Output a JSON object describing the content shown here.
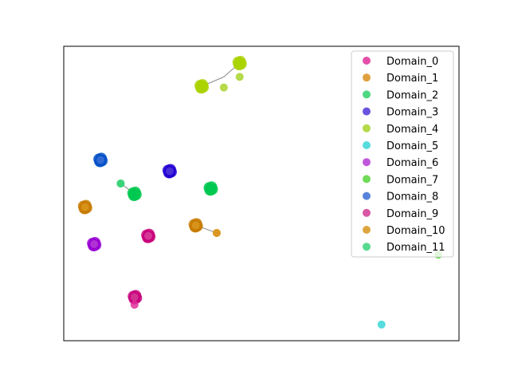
{
  "chart_data": {
    "type": "scatter",
    "title": "",
    "xlabel": "",
    "ylabel": "",
    "xlim": [
      0,
      100
    ],
    "ylim": [
      0,
      100
    ],
    "grid": false,
    "axis_ticks": false,
    "legend_placement": "top-right",
    "series": [
      {
        "name": "Domain_0",
        "color": "#e0309b",
        "points": [
          [
            17.9,
            12.2
          ],
          [
            21.4,
            35.6
          ]
        ]
      },
      {
        "name": "Domain_1",
        "color": "#d9901f",
        "points": [
          [
            38.7,
            36.6
          ]
        ]
      },
      {
        "name": "Domain_2",
        "color": "#2fd06a",
        "points": [
          [
            14.4,
            53.4
          ]
        ]
      },
      {
        "name": "Domain_3",
        "color": "#4d36d8",
        "points": [
          [
            26.8,
            57.6
          ]
        ]
      },
      {
        "name": "Domain_4",
        "color": "#a8d42a",
        "points": [
          [
            44.5,
            89.6
          ],
          [
            40.5,
            86.0
          ]
        ]
      },
      {
        "name": "Domain_5",
        "color": "#3ad6d8",
        "points": [
          [
            80.4,
            5.5
          ]
        ]
      },
      {
        "name": "Domain_6",
        "color": "#b43ad4",
        "points": [
          [
            7.7,
            32.8
          ]
        ]
      },
      {
        "name": "Domain_7",
        "color": "#58d43a",
        "points": [
          [
            94.8,
            29.2
          ]
        ]
      },
      {
        "name": "Domain_8",
        "color": "#3a6fd4",
        "points": [
          [
            9.3,
            61.4
          ]
        ]
      },
      {
        "name": "Domain_9",
        "color": "#d43a96",
        "points": [
          [
            17.9,
            14.8
          ],
          [
            21.4,
            35.6
          ]
        ]
      },
      {
        "name": "Domain_10",
        "color": "#d9961f",
        "points": [
          [
            5.4,
            45.4
          ],
          [
            33.4,
            39.2
          ],
          [
            38.7,
            36.6
          ]
        ]
      },
      {
        "name": "Domain_11",
        "color": "#3ad47a",
        "points": [
          [
            14.4,
            53.4
          ]
        ]
      }
    ],
    "clusters": [
      {
        "color": "#c8007a",
        "x": 21.4,
        "y": 35.6
      },
      {
        "color": "#c8007a",
        "x": 18.0,
        "y": 14.8
      },
      {
        "color": "#c87a00",
        "x": 33.4,
        "y": 39.2
      },
      {
        "color": "#c87a00",
        "x": 5.4,
        "y": 45.4
      },
      {
        "color": "#00c850",
        "x": 17.9,
        "y": 49.9
      },
      {
        "color": "#00c850",
        "x": 37.2,
        "y": 51.7
      },
      {
        "color": "#2200d2",
        "x": 26.8,
        "y": 57.6
      },
      {
        "color": "#0050c8",
        "x": 9.3,
        "y": 61.4
      },
      {
        "color": "#9600d2",
        "x": 7.7,
        "y": 32.8
      },
      {
        "color": "#aad200",
        "x": 34.9,
        "y": 86.4
      },
      {
        "color": "#aad200",
        "x": 44.5,
        "y": 94.3
      }
    ],
    "links": [
      [
        [
          14.4,
          53.4
        ],
        [
          17.9,
          49.9
        ]
      ],
      [
        [
          33.4,
          39.2
        ],
        [
          38.7,
          36.6
        ]
      ],
      [
        [
          34.9,
          86.4
        ],
        [
          40.5,
          89.6
        ]
      ],
      [
        [
          40.5,
          89.6
        ],
        [
          44.5,
          94.3
        ]
      ]
    ]
  }
}
